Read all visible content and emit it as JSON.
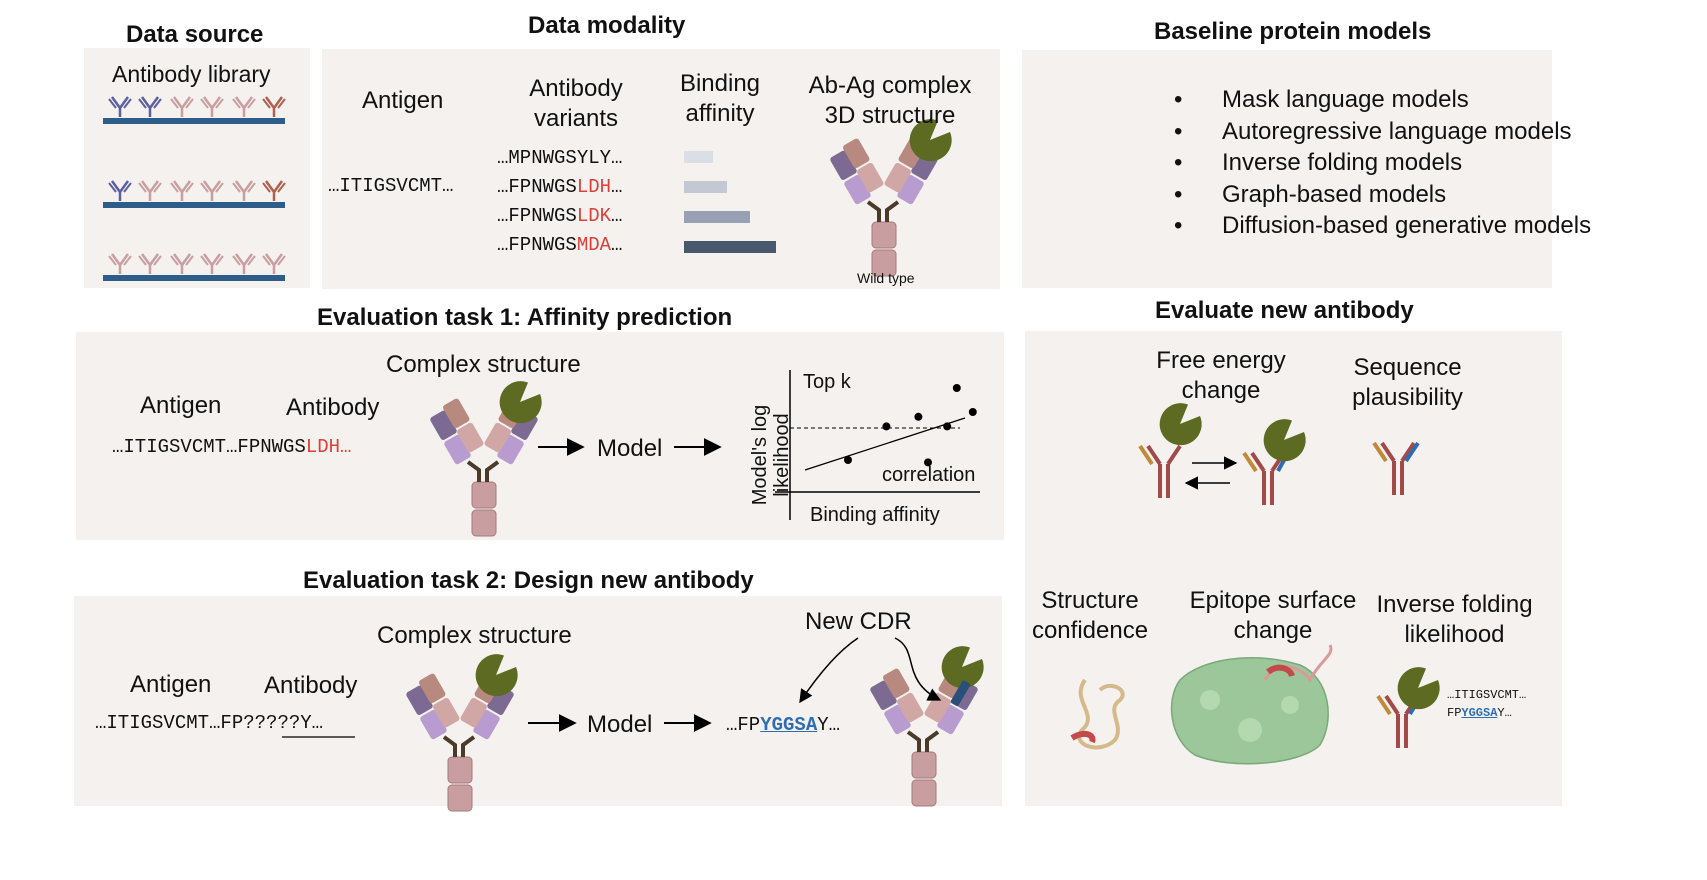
{
  "data_source": {
    "title": "Data source",
    "library_label": "Antibody library"
  },
  "data_modality": {
    "title": "Data modality",
    "antigen_header": "Antigen",
    "variants_header": "Antibody variants",
    "affinity_header": "Binding affinity",
    "complex_header": "Ab-Ag complex 3D structure",
    "antigen_seq": "…ITIGSVCMT…",
    "variants": [
      {
        "prefix": "…MPNWGSYLY…",
        "mut": "",
        "suffix": "",
        "affinity": 0.31
      },
      {
        "prefix": "…FPNWGS",
        "mut": "LDH",
        "suffix": "…",
        "affinity": 0.47
      },
      {
        "prefix": "…FPNWGS",
        "mut": "LDK",
        "suffix": "…",
        "affinity": 0.72
      },
      {
        "prefix": "…FPNWGS",
        "mut": "MDA",
        "suffix": "…",
        "affinity": 1.0
      }
    ],
    "wild_type_label": "Wild type"
  },
  "baseline": {
    "title": "Baseline protein models",
    "models": [
      "Mask language models",
      "Autoregressive language models",
      "Inverse folding models",
      "Graph-based models",
      "Diffusion-based generative models"
    ]
  },
  "task1": {
    "title": "Evaluation task 1: Affinity prediction",
    "complex_label": "Complex structure",
    "antigen_label": "Antigen",
    "antibody_label": "Antibody",
    "sequence_prefix": "…ITIGSVCMT…FPNWGS",
    "sequence_mut": "LDH…",
    "model_label": "Model",
    "plot_ylabel": "Model's log likelihood",
    "plot_xlabel": "Binding affinity",
    "plot_topk": "Top k",
    "plot_corr": "correlation"
  },
  "task2": {
    "title": "Evaluation task 2: Design new antibody",
    "complex_label": "Complex structure",
    "antigen_label": "Antigen",
    "antibody_label": "Antibody",
    "seq_antigen": "…ITIGSVCMT…",
    "seq_fp": "FP",
    "seq_masked": "?????",
    "seq_tail": "Y…",
    "model_label": "Model",
    "out_prefix": "…FP",
    "out_cdr": "YGGSA",
    "out_suffix": "Y…",
    "new_cdr_label": "New CDR"
  },
  "evaluate": {
    "title": "Evaluate new antibody",
    "free_energy": "Free energy change",
    "plausibility": "Sequence plausibility",
    "structure_conf": "Structure confidence",
    "epitope": "Epitope surface change",
    "inverse_folding": "Inverse folding likelihood",
    "seq_line1": "…ITIGSVCMT…",
    "seq_line2_prefix": "FP",
    "seq_line2_cdr": "YGGSA",
    "seq_line2_suffix": "Y…"
  },
  "colors": {
    "panel": "#f4f1ee",
    "base": "#2f5d8a",
    "antigen": "#5c6b21",
    "ab_heavy": "#c99ea0",
    "ab_light_purple": "#b89ccf",
    "ab_dark_purple": "#7d6a92",
    "mutation_red": "#d9403a",
    "cdr_blue": "#2f6db3",
    "bars": [
      "#dcdee5",
      "#c3c8d4",
      "#98a1b3",
      "#4a586e"
    ]
  },
  "chart_data": {
    "type": "scatter",
    "xlabel": "Binding affinity",
    "ylabel": "Model's log likelihood",
    "annotations": [
      "Top k",
      "correlation"
    ],
    "points": [
      [
        1.0,
        1.0
      ],
      [
        2.2,
        2.4
      ],
      [
        3.2,
        2.8
      ],
      [
        3.5,
        0.9
      ],
      [
        4.1,
        2.4
      ],
      [
        4.4,
        4.0
      ],
      [
        4.9,
        3.0
      ]
    ],
    "trend": "positive linear fit",
    "threshold": "dashed horizontal line marking top k"
  }
}
